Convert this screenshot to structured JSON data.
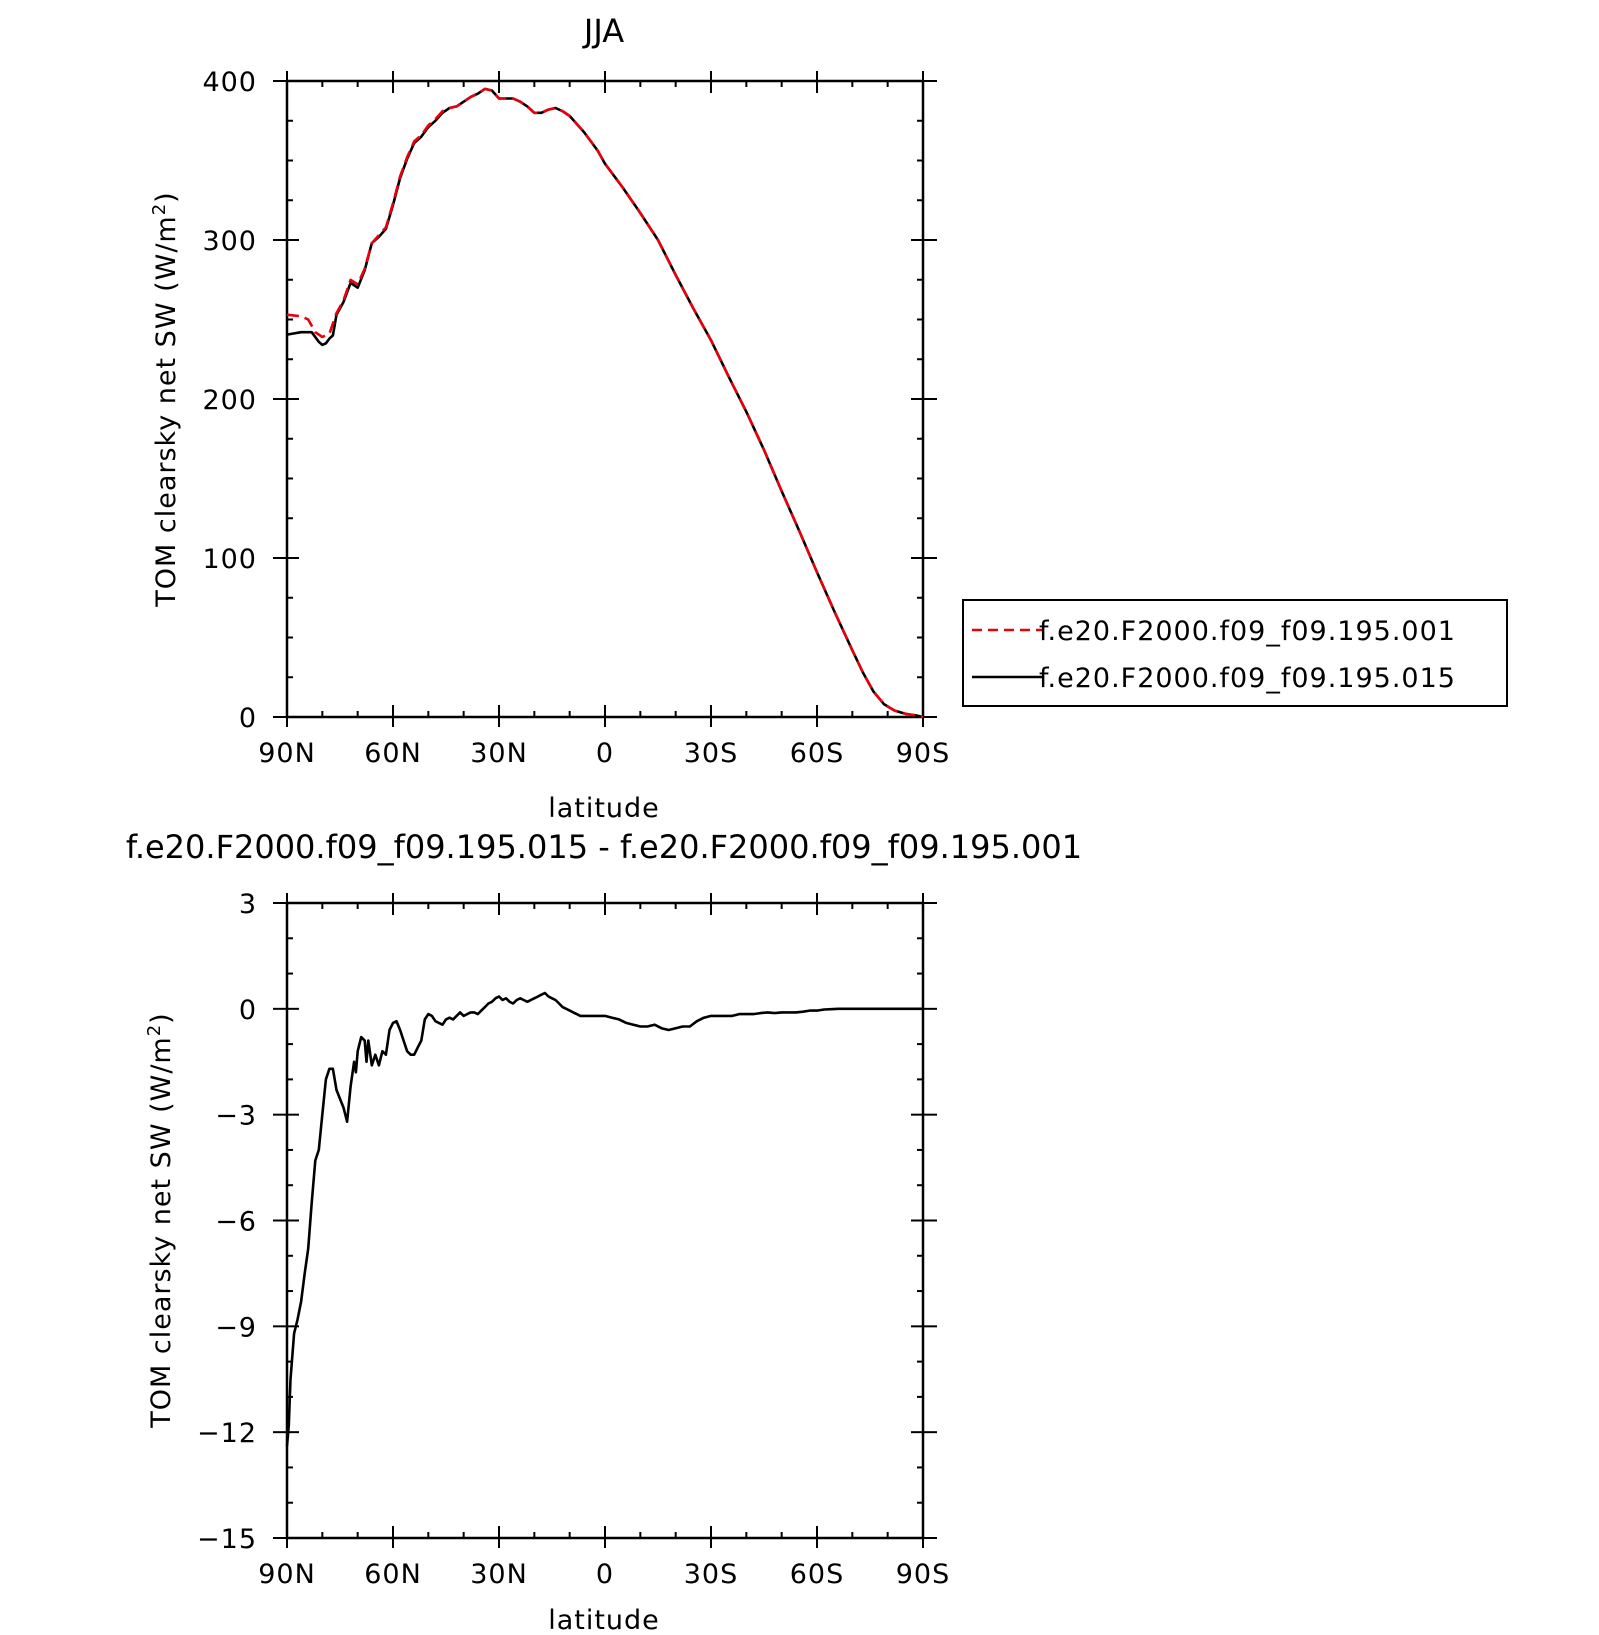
{
  "chart_data": [
    {
      "type": "line",
      "title": "JJA",
      "xlabel": "latitude",
      "ylabel": "TOM clearsky net SW (W/m²)",
      "ylabel_main": "TOM clearsky net SW (W/m",
      "ylabel_sup": "2",
      "ylabel_close": ")",
      "xlim": [
        90,
        -90
      ],
      "ylim": [
        0,
        400
      ],
      "xtick_values": [
        90,
        60,
        30,
        0,
        -30,
        -60,
        -90
      ],
      "xtick_labels": [
        "90N",
        "60N",
        "30N",
        "0",
        "30S",
        "60S",
        "90S"
      ],
      "ytick_values": [
        0,
        100,
        200,
        300,
        400
      ],
      "ytick_labels": [
        "0",
        "100",
        "200",
        "300",
        "400"
      ],
      "grid": false,
      "legend_position": "right",
      "series": [
        {
          "name": "f.e20.F2000.f09_f09.195.001",
          "color": "#e8000b",
          "dash": "dashed",
          "points": [
            [
              90,
              253
            ],
            [
              86,
              252
            ],
            [
              84,
              250
            ],
            [
              82,
              242
            ],
            [
              80,
              239
            ],
            [
              78,
              241
            ],
            [
              76,
              254
            ],
            [
              74,
              262
            ],
            [
              72,
              275
            ],
            [
              70,
              272
            ],
            [
              68,
              282
            ],
            [
              66,
              298
            ],
            [
              64,
              303
            ],
            [
              62,
              308
            ],
            [
              60,
              323
            ],
            [
              58,
              340
            ],
            [
              56,
              352
            ],
            [
              54,
              362
            ],
            [
              52,
              366
            ],
            [
              50,
              372
            ],
            [
              48,
              376
            ],
            [
              46,
              381
            ],
            [
              44,
              383
            ],
            [
              42,
              384
            ],
            [
              40,
              387
            ],
            [
              38,
              390
            ],
            [
              36,
              392
            ],
            [
              34,
              395
            ],
            [
              32,
              394
            ],
            [
              30,
              389
            ],
            [
              28,
              389
            ],
            [
              26,
              389
            ],
            [
              24,
              387
            ],
            [
              22,
              384
            ],
            [
              20,
              380
            ],
            [
              18,
              380
            ],
            [
              16,
              382
            ],
            [
              14,
              383
            ],
            [
              12,
              381
            ],
            [
              10,
              378
            ],
            [
              8,
              373
            ],
            [
              6,
              368
            ],
            [
              4,
              362
            ],
            [
              2,
              356
            ],
            [
              0,
              348
            ],
            [
              -5,
              333
            ],
            [
              -10,
              317
            ],
            [
              -15,
              300
            ],
            [
              -20,
              278
            ],
            [
              -25,
              257
            ],
            [
              -30,
              237
            ],
            [
              -35,
              214
            ],
            [
              -40,
              192
            ],
            [
              -45,
              168
            ],
            [
              -50,
              142
            ],
            [
              -55,
              117
            ],
            [
              -60,
              91
            ],
            [
              -65,
              66
            ],
            [
              -70,
              42
            ],
            [
              -73,
              28
            ],
            [
              -76,
              16
            ],
            [
              -79,
              8
            ],
            [
              -82,
              4
            ],
            [
              -85,
              2
            ],
            [
              -88,
              1
            ],
            [
              -90,
              0
            ]
          ]
        },
        {
          "name": "f.e20.F2000.f09_f09.195.015",
          "color": "#000000",
          "dash": "solid",
          "points": [
            [
              90,
              240.5
            ],
            [
              86,
              242
            ],
            [
              83,
              242
            ],
            [
              81,
              236
            ],
            [
              80,
              234
            ],
            [
              79,
              235
            ],
            [
              78,
              238
            ],
            [
              77,
              240
            ],
            [
              76,
              253
            ],
            [
              74,
              261
            ],
            [
              72,
              273
            ],
            [
              70,
              270
            ],
            [
              68,
              281
            ],
            [
              66,
              298
            ],
            [
              64,
              302
            ],
            [
              62,
              307
            ],
            [
              60,
              322
            ],
            [
              58,
              339
            ],
            [
              56,
              351
            ],
            [
              54,
              361
            ],
            [
              52,
              365
            ],
            [
              50,
              371
            ],
            [
              48,
              375
            ],
            [
              46,
              380
            ],
            [
              44,
              383
            ],
            [
              42,
              384
            ],
            [
              40,
              387
            ],
            [
              38,
              390
            ],
            [
              36,
              392
            ],
            [
              34,
              395
            ],
            [
              32,
              394
            ],
            [
              30,
              389
            ],
            [
              28,
              389
            ],
            [
              26,
              389
            ],
            [
              24,
              387
            ],
            [
              22,
              384
            ],
            [
              20,
              380
            ],
            [
              18,
              380
            ],
            [
              16,
              382
            ],
            [
              14,
              383
            ],
            [
              12,
              381
            ],
            [
              10,
              378
            ],
            [
              8,
              373
            ],
            [
              6,
              368
            ],
            [
              4,
              362
            ],
            [
              2,
              356
            ],
            [
              0,
              348
            ],
            [
              -5,
              333
            ],
            [
              -10,
              317
            ],
            [
              -15,
              300
            ],
            [
              -20,
              278
            ],
            [
              -25,
              257
            ],
            [
              -30,
              237
            ],
            [
              -35,
              214
            ],
            [
              -40,
              192
            ],
            [
              -45,
              168
            ],
            [
              -50,
              142
            ],
            [
              -55,
              117
            ],
            [
              -60,
              91
            ],
            [
              -65,
              66
            ],
            [
              -70,
              42
            ],
            [
              -73,
              28
            ],
            [
              -76,
              16
            ],
            [
              -79,
              8
            ],
            [
              -82,
              4
            ],
            [
              -85,
              2
            ],
            [
              -88,
              1
            ],
            [
              -90,
              0
            ]
          ]
        }
      ]
    },
    {
      "type": "line",
      "title": "f.e20.F2000.f09_f09.195.015 - f.e20.F2000.f09_f09.195.001",
      "xlabel": "latitude",
      "ylabel": "TOM clearsky net SW (W/m²)",
      "ylabel_main": "TOM clearsky net SW (W/m",
      "ylabel_sup": "2",
      "ylabel_close": ")",
      "xlim": [
        90,
        -90
      ],
      "ylim": [
        -15,
        3
      ],
      "xtick_values": [
        90,
        60,
        30,
        0,
        -30,
        -60,
        -90
      ],
      "xtick_labels": [
        "90N",
        "60N",
        "30N",
        "0",
        "30S",
        "60S",
        "90S"
      ],
      "ytick_values": [
        3,
        0,
        -3,
        -6,
        -9,
        -12,
        -15
      ],
      "ytick_labels": [
        "3",
        "0",
        "−3",
        "−6",
        "−9",
        "−12",
        "−15"
      ],
      "grid": false,
      "series": [
        {
          "color": "#000000",
          "dash": "solid",
          "points": [
            [
              90,
              -12.4
            ],
            [
              89.5,
              -11.8
            ],
            [
              89,
              -10.5
            ],
            [
              88,
              -9.2
            ],
            [
              87,
              -8.8
            ],
            [
              86,
              -8.3
            ],
            [
              85,
              -7.5
            ],
            [
              84,
              -6.8
            ],
            [
              83,
              -5.5
            ],
            [
              82,
              -4.3
            ],
            [
              81,
              -4.0
            ],
            [
              80,
              -3.0
            ],
            [
              79,
              -2.0
            ],
            [
              78,
              -1.7
            ],
            [
              77,
              -1.7
            ],
            [
              76,
              -2.3
            ],
            [
              74,
              -2.8
            ],
            [
              73,
              -3.2
            ],
            [
              72,
              -2.2
            ],
            [
              71,
              -1.5
            ],
            [
              70.5,
              -1.8
            ],
            [
              70,
              -1.2
            ],
            [
              69,
              -0.8
            ],
            [
              68,
              -0.9
            ],
            [
              67.5,
              -1.5
            ],
            [
              67,
              -0.9
            ],
            [
              66,
              -1.6
            ],
            [
              65,
              -1.3
            ],
            [
              64,
              -1.6
            ],
            [
              63,
              -1.2
            ],
            [
              62,
              -1.3
            ],
            [
              61,
              -0.6
            ],
            [
              60,
              -0.4
            ],
            [
              59,
              -0.35
            ],
            [
              58,
              -0.6
            ],
            [
              57,
              -0.9
            ],
            [
              56,
              -1.2
            ],
            [
              55,
              -1.3
            ],
            [
              54,
              -1.3
            ],
            [
              53,
              -1.1
            ],
            [
              52,
              -0.9
            ],
            [
              51,
              -0.3
            ],
            [
              50,
              -0.15
            ],
            [
              49,
              -0.2
            ],
            [
              48,
              -0.35
            ],
            [
              47,
              -0.4
            ],
            [
              46,
              -0.45
            ],
            [
              45,
              -0.3
            ],
            [
              44,
              -0.25
            ],
            [
              43,
              -0.3
            ],
            [
              42,
              -0.2
            ],
            [
              41,
              -0.1
            ],
            [
              40,
              -0.2
            ],
            [
              39,
              -0.15
            ],
            [
              38,
              -0.1
            ],
            [
              37,
              -0.1
            ],
            [
              36,
              -0.15
            ],
            [
              35,
              -0.05
            ],
            [
              34,
              0.05
            ],
            [
              33,
              0.15
            ],
            [
              32,
              0.2
            ],
            [
              31,
              0.3
            ],
            [
              30,
              0.35
            ],
            [
              29,
              0.25
            ],
            [
              28,
              0.3
            ],
            [
              27,
              0.2
            ],
            [
              26,
              0.15
            ],
            [
              25,
              0.25
            ],
            [
              24,
              0.3
            ],
            [
              23,
              0.25
            ],
            [
              22,
              0.2
            ],
            [
              21,
              0.25
            ],
            [
              20,
              0.3
            ],
            [
              19,
              0.35
            ],
            [
              18,
              0.4
            ],
            [
              17,
              0.45
            ],
            [
              16,
              0.35
            ],
            [
              15,
              0.3
            ],
            [
              14,
              0.25
            ],
            [
              13,
              0.15
            ],
            [
              12,
              0.05
            ],
            [
              11,
              0.0
            ],
            [
              10,
              -0.05
            ],
            [
              9,
              -0.1
            ],
            [
              8,
              -0.15
            ],
            [
              7,
              -0.2
            ],
            [
              6,
              -0.2
            ],
            [
              5,
              -0.2
            ],
            [
              4,
              -0.2
            ],
            [
              2,
              -0.2
            ],
            [
              0,
              -0.2
            ],
            [
              -2,
              -0.25
            ],
            [
              -4,
              -0.3
            ],
            [
              -6,
              -0.4
            ],
            [
              -8,
              -0.45
            ],
            [
              -10,
              -0.5
            ],
            [
              -12,
              -0.5
            ],
            [
              -14,
              -0.45
            ],
            [
              -16,
              -0.55
            ],
            [
              -18,
              -0.6
            ],
            [
              -20,
              -0.55
            ],
            [
              -22,
              -0.5
            ],
            [
              -24,
              -0.5
            ],
            [
              -26,
              -0.35
            ],
            [
              -28,
              -0.25
            ],
            [
              -30,
              -0.2
            ],
            [
              -32,
              -0.2
            ],
            [
              -34,
              -0.2
            ],
            [
              -36,
              -0.2
            ],
            [
              -38,
              -0.15
            ],
            [
              -40,
              -0.15
            ],
            [
              -42,
              -0.15
            ],
            [
              -44,
              -0.12
            ],
            [
              -46,
              -0.1
            ],
            [
              -48,
              -0.12
            ],
            [
              -50,
              -0.1
            ],
            [
              -52,
              -0.1
            ],
            [
              -54,
              -0.1
            ],
            [
              -56,
              -0.08
            ],
            [
              -58,
              -0.05
            ],
            [
              -60,
              -0.05
            ],
            [
              -62,
              -0.02
            ],
            [
              -64,
              -0.01
            ],
            [
              -66,
              0.0
            ],
            [
              -70,
              0.0
            ],
            [
              -90,
              0.0
            ]
          ]
        }
      ]
    }
  ]
}
